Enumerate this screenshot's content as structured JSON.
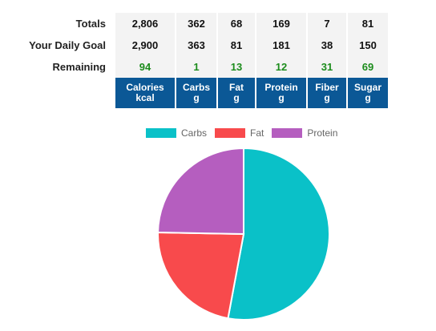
{
  "table": {
    "row_labels": {
      "totals": "Totals",
      "goal": "Your Daily Goal",
      "remaining": "Remaining"
    },
    "totals": [
      "2,806",
      "362",
      "68",
      "169",
      "7",
      "81"
    ],
    "goal": [
      "2,900",
      "363",
      "81",
      "181",
      "38",
      "150"
    ],
    "remaining": [
      "94",
      "1",
      "13",
      "12",
      "31",
      "69"
    ],
    "headers": [
      {
        "name": "Calories",
        "unit": "kcal"
      },
      {
        "name": "Carbs",
        "unit": "g"
      },
      {
        "name": "Fat",
        "unit": "g"
      },
      {
        "name": "Protein",
        "unit": "g"
      },
      {
        "name": "Fiber",
        "unit": "g"
      },
      {
        "name": "Sugar",
        "unit": "g"
      }
    ]
  },
  "colors": {
    "header_bg": "#0b5896",
    "remaining_text": "#1c8c1c",
    "cell_bg": "#f3f3f3"
  },
  "chart_data": {
    "type": "pie",
    "legend_position": "top",
    "slices": [
      {
        "label": "Carbs",
        "value": 362,
        "color": "#0ac1c8"
      },
      {
        "label": "Fat",
        "value": 153,
        "color": "#f84a4c"
      },
      {
        "label": "Protein",
        "value": 169,
        "color": "#b55ebf"
      }
    ]
  }
}
